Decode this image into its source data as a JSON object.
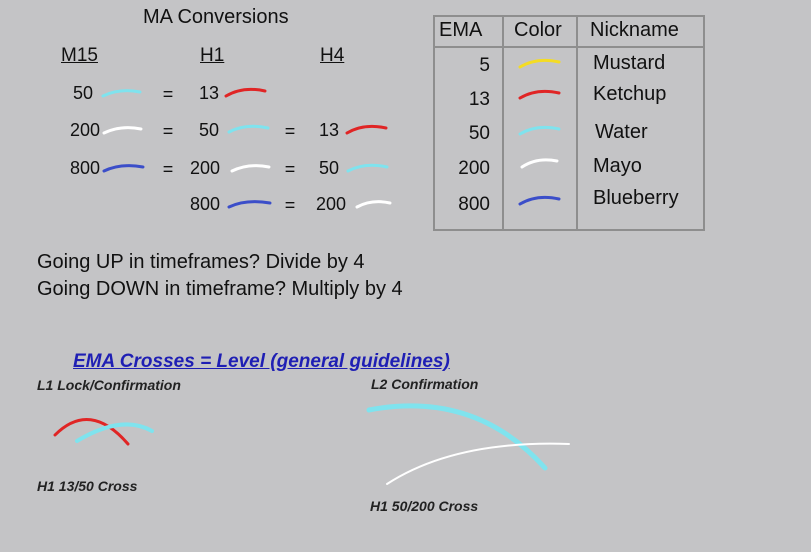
{
  "conversions": {
    "title": "MA Conversions",
    "headers": {
      "m15": "M15",
      "h1": "H1",
      "h4": "H4"
    },
    "rows": [
      {
        "m15": "50",
        "h1": "13",
        "h4": ""
      },
      {
        "m15": "200",
        "h1": "50",
        "h4": "13"
      },
      {
        "m15": "800",
        "h1": "200",
        "h4": "50"
      },
      {
        "m15": "",
        "h1": "800",
        "h4": "200"
      }
    ],
    "equals": "="
  },
  "ema_table": {
    "headers": {
      "ema": "EMA",
      "color": "Color",
      "nickname": "Nickname"
    },
    "rows": [
      {
        "ema": "5",
        "nickname": "Mustard",
        "color": "#f4dc23"
      },
      {
        "ema": "13",
        "nickname": "Ketchup",
        "color": "#e02525"
      },
      {
        "ema": "50",
        "nickname": "Water",
        "color": "#7fe3ee"
      },
      {
        "ema": "200",
        "nickname": "Mayo",
        "color": "#ffffff"
      },
      {
        "ema": "800",
        "nickname": "Blueberry",
        "color": "#3b4ec9"
      }
    ]
  },
  "notes": {
    "up": "Going UP in timeframes? Divide by 4",
    "down": "Going DOWN in timeframe? Multiply by 4"
  },
  "crosses": {
    "title": "EMA Crosses = Level (general guidelines)",
    "l1_label": "L1 Lock/Confirmation",
    "l2_label": "L2 Confirmation",
    "h1_13_50": "H1 13/50 Cross",
    "h1_50_200": "H1 50/200 Cross"
  },
  "colors": {
    "mustard": "#f4dc23",
    "ketchup": "#e02525",
    "water": "#7fe3ee",
    "mayo": "#ffffff",
    "blueberry": "#3b4ec9",
    "background": "#c4c4c6",
    "link_blue": "#1f1fb4"
  }
}
